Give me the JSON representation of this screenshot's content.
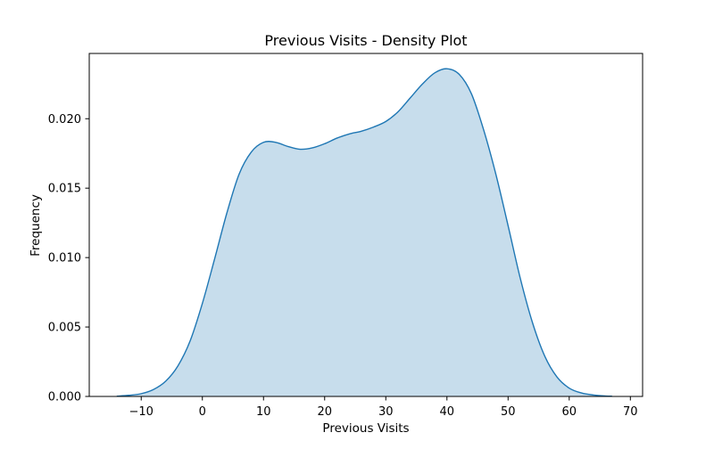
{
  "chart_data": {
    "type": "area",
    "title": "Previous Visits - Density Plot",
    "xlabel": "Previous Visits",
    "ylabel": "Frequency",
    "xlim": [
      -18.5,
      72
    ],
    "ylim": [
      0,
      0.0247
    ],
    "x_ticks": [
      -10,
      0,
      10,
      20,
      30,
      40,
      50,
      60,
      70
    ],
    "x_tick_labels": [
      "−10",
      "0",
      "10",
      "20",
      "30",
      "40",
      "50",
      "60",
      "70"
    ],
    "y_ticks": [
      0.0,
      0.005,
      0.01,
      0.015,
      0.02
    ],
    "y_tick_labels": [
      "0.000",
      "0.005",
      "0.010",
      "0.015",
      "0.020"
    ],
    "grid": false,
    "series": [
      {
        "color": "#1f77b4",
        "fill_color": "#1f77b4",
        "fill_opacity": 0.25,
        "x": [
          -14,
          -12,
          -10,
          -8,
          -6,
          -4,
          -2,
          0,
          2,
          4,
          6,
          8,
          10,
          12,
          14,
          16,
          18,
          20,
          22,
          24,
          26,
          28,
          30,
          32,
          34,
          36,
          38,
          40,
          42,
          44,
          46,
          48,
          50,
          52,
          54,
          56,
          58,
          60,
          62,
          64,
          66,
          67
        ],
        "y": [
          2e-05,
          8e-05,
          0.0002,
          0.0005,
          0.0011,
          0.0022,
          0.004,
          0.0067,
          0.0099,
          0.0132,
          0.016,
          0.0176,
          0.0183,
          0.0183,
          0.018,
          0.0178,
          0.0179,
          0.0182,
          0.0186,
          0.0189,
          0.0191,
          0.0194,
          0.0198,
          0.0205,
          0.0215,
          0.0225,
          0.0233,
          0.0236,
          0.0232,
          0.0218,
          0.0192,
          0.016,
          0.0123,
          0.0085,
          0.0053,
          0.0029,
          0.0014,
          0.0006,
          0.00025,
          0.0001,
          3e-05,
          2e-05
        ]
      }
    ]
  }
}
